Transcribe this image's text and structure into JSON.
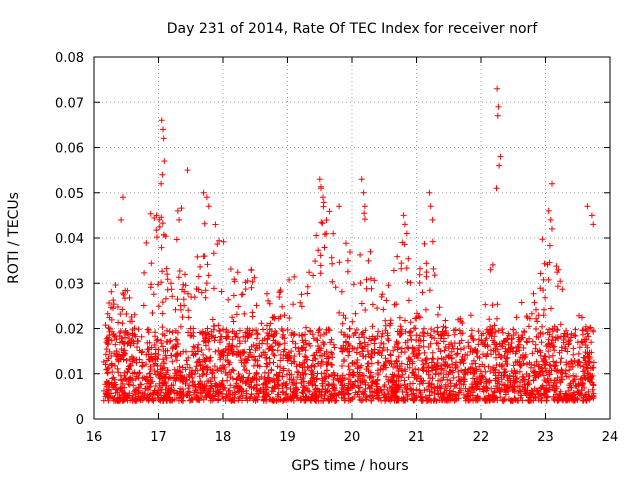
{
  "chart_data": {
    "type": "scatter",
    "title": "Day 231 of 2014, Rate Of TEC Index for receiver norf",
    "xlabel": "GPS time / hours",
    "ylabel": "ROTI / TECUs",
    "xlim": [
      16,
      24
    ],
    "ylim": [
      0,
      0.08
    ],
    "xticks": [
      "16",
      "17",
      "18",
      "19",
      "20",
      "21",
      "22",
      "23",
      "24"
    ],
    "yticks": [
      "0",
      "0.01",
      "0.02",
      "0.03",
      "0.04",
      "0.05",
      "0.06",
      "0.07",
      "0.08"
    ],
    "grid": true,
    "marker": "+",
    "color": "#ff0000",
    "series": [
      {
        "name": "ROTI",
        "x_range": [
          16.15,
          23.75
        ],
        "typical_range": [
          0.004,
          0.02
        ],
        "envelope": [
          [
            16.15,
            0.021
          ],
          [
            16.3,
            0.032
          ],
          [
            16.5,
            0.029
          ],
          [
            16.7,
            0.024
          ],
          [
            16.85,
            0.045
          ],
          [
            17.0,
            0.047
          ],
          [
            17.2,
            0.036
          ],
          [
            17.35,
            0.048
          ],
          [
            17.5,
            0.03
          ],
          [
            17.75,
            0.05
          ],
          [
            18.0,
            0.04
          ],
          [
            18.25,
            0.032
          ],
          [
            18.5,
            0.039
          ],
          [
            18.75,
            0.025
          ],
          [
            19.0,
            0.035
          ],
          [
            19.25,
            0.027
          ],
          [
            19.5,
            0.052
          ],
          [
            19.75,
            0.046
          ],
          [
            20.0,
            0.04
          ],
          [
            20.2,
            0.05
          ],
          [
            20.4,
            0.028
          ],
          [
            20.6,
            0.033
          ],
          [
            20.85,
            0.041
          ],
          [
            21.0,
            0.029
          ],
          [
            21.2,
            0.047
          ],
          [
            21.4,
            0.022
          ],
          [
            21.6,
            0.022
          ],
          [
            21.85,
            0.024
          ],
          [
            22.0,
            0.028
          ],
          [
            22.2,
            0.035
          ],
          [
            22.4,
            0.018
          ],
          [
            22.6,
            0.026
          ],
          [
            22.85,
            0.029
          ],
          [
            23.0,
            0.046
          ],
          [
            23.2,
            0.033
          ],
          [
            23.4,
            0.025
          ],
          [
            23.6,
            0.022
          ],
          [
            23.75,
            0.021
          ]
        ],
        "points": [
          [
            16.45,
            0.049
          ],
          [
            16.42,
            0.044
          ],
          [
            16.97,
            0.045
          ],
          [
            17.05,
            0.066
          ],
          [
            17.07,
            0.064
          ],
          [
            17.08,
            0.062
          ],
          [
            17.09,
            0.057
          ],
          [
            17.06,
            0.054
          ],
          [
            17.04,
            0.052
          ],
          [
            17.45,
            0.055
          ],
          [
            17.3,
            0.046
          ],
          [
            17.32,
            0.044
          ],
          [
            17.7,
            0.05
          ],
          [
            17.75,
            0.049
          ],
          [
            17.78,
            0.047
          ],
          [
            19.5,
            0.053
          ],
          [
            19.52,
            0.051
          ],
          [
            19.55,
            0.049
          ],
          [
            19.8,
            0.047
          ],
          [
            20.15,
            0.053
          ],
          [
            20.18,
            0.05
          ],
          [
            20.2,
            0.047
          ],
          [
            20.8,
            0.045
          ],
          [
            20.82,
            0.043
          ],
          [
            20.85,
            0.041
          ],
          [
            20.78,
            0.039
          ],
          [
            21.2,
            0.05
          ],
          [
            21.22,
            0.047
          ],
          [
            21.25,
            0.044
          ],
          [
            22.25,
            0.073
          ],
          [
            22.27,
            0.069
          ],
          [
            22.26,
            0.067
          ],
          [
            22.3,
            0.058
          ],
          [
            22.28,
            0.056
          ],
          [
            22.24,
            0.051
          ],
          [
            23.1,
            0.052
          ],
          [
            23.05,
            0.046
          ],
          [
            23.08,
            0.044
          ],
          [
            23.1,
            0.042
          ],
          [
            23.65,
            0.047
          ],
          [
            23.72,
            0.045
          ],
          [
            23.74,
            0.043
          ]
        ]
      }
    ]
  }
}
